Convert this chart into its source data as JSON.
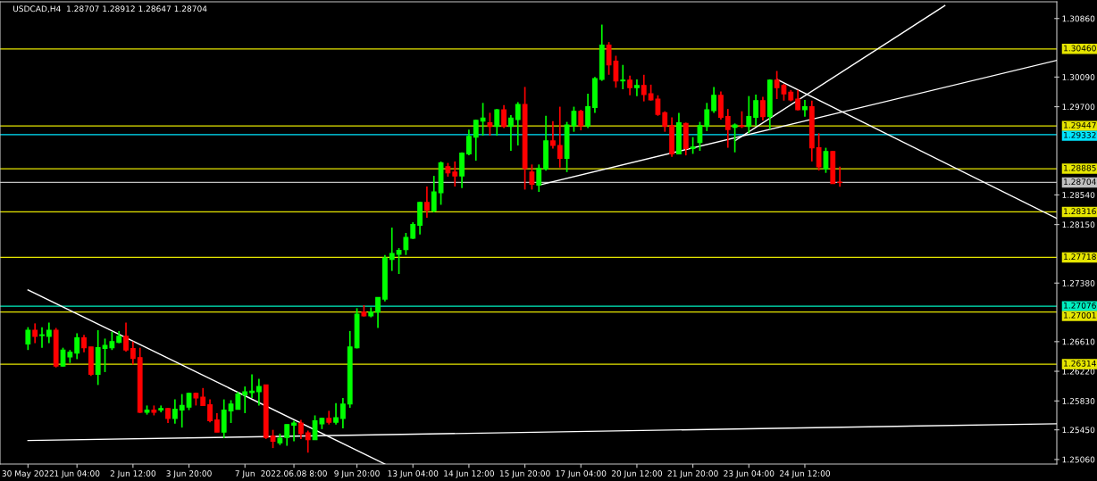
{
  "chart_data": {
    "type": "candlestick",
    "title": "USDCAD,H4  1.28707 1.28912 1.28647 1.28704",
    "categories": [
      "30 May 2022",
      null,
      null,
      null,
      null,
      null,
      null,
      "1 Jun 04:00",
      null,
      null,
      null,
      null,
      null,
      null,
      null,
      "2 Jun 12:00",
      null,
      null,
      null,
      null,
      null,
      null,
      null,
      "3 Jun 20:00",
      null,
      null,
      null,
      null,
      null,
      null,
      null,
      "7 Jun",
      null,
      null,
      null,
      null,
      null,
      null,
      "2022.06.08 8:00",
      null,
      null,
      null,
      null,
      null,
      null,
      null,
      null,
      "9 Jun 20:00",
      null,
      null,
      null,
      null,
      null,
      null,
      null,
      "13 Jun 04:00",
      null,
      null,
      null,
      null,
      null,
      null,
      null,
      "14 Jun 12:00",
      null,
      null,
      null,
      null,
      null,
      null,
      null,
      "15 Jun 20:00",
      null,
      null,
      null,
      null,
      null,
      null,
      null,
      "17 Jun 04:00",
      null,
      null,
      null,
      null,
      null,
      null,
      null,
      "20 Jun 12:00",
      null,
      null,
      null,
      null,
      null,
      null,
      null,
      "21 Jun 20:00",
      null,
      null,
      null,
      null,
      null,
      null,
      null,
      "23 Jun 04:00",
      null,
      null,
      null,
      null,
      null,
      null,
      null,
      "24 Jun 12:00",
      null,
      null,
      null,
      null,
      null,
      null,
      null,
      null,
      null,
      null,
      null,
      null,
      null,
      null,
      null,
      null,
      null,
      null,
      null,
      null,
      null,
      null,
      null,
      null,
      null,
      null,
      null,
      null,
      null,
      null,
      null,
      null,
      null,
      null,
      null,
      null
    ],
    "ohlc": [
      [
        1.2658,
        1.268,
        1.265,
        1.2676
      ],
      [
        1.2676,
        1.2685,
        1.2659,
        1.2668
      ],
      [
        1.2669,
        1.268,
        1.2653,
        1.267
      ],
      [
        1.2668,
        1.2686,
        1.2659,
        1.2676
      ],
      [
        1.2676,
        1.2679,
        1.2627,
        1.2629
      ],
      [
        1.2629,
        1.2653,
        1.2628,
        1.265
      ],
      [
        1.2641,
        1.265,
        1.2633,
        1.2647
      ],
      [
        1.2646,
        1.2672,
        1.2638,
        1.2666
      ],
      [
        1.2666,
        1.267,
        1.2647,
        1.2653
      ],
      [
        1.2654,
        1.2654,
        1.2616,
        1.2618
      ],
      [
        1.2618,
        1.2676,
        1.2604,
        1.2653
      ],
      [
        1.2652,
        1.2665,
        1.2621,
        1.2656
      ],
      [
        1.2653,
        1.2674,
        1.265,
        1.2661
      ],
      [
        1.266,
        1.2675,
        1.2659,
        1.2668
      ],
      [
        1.2668,
        1.2686,
        1.2648,
        1.265
      ],
      [
        1.2652,
        1.2661,
        1.2631,
        1.2639
      ],
      [
        1.264,
        1.2653,
        1.2567,
        1.2568
      ],
      [
        1.2568,
        1.2577,
        1.2565,
        1.2571
      ],
      [
        1.2571,
        1.2577,
        1.2564,
        1.2568
      ],
      [
        1.2571,
        1.2577,
        1.2568,
        1.2573
      ],
      [
        1.2573,
        1.2574,
        1.2554,
        1.256
      ],
      [
        1.256,
        1.2585,
        1.2553,
        1.2572
      ],
      [
        1.2571,
        1.2592,
        1.2548,
        1.2577
      ],
      [
        1.2575,
        1.2594,
        1.2571,
        1.2593
      ],
      [
        1.2593,
        1.2594,
        1.2577,
        1.2587
      ],
      [
        1.2588,
        1.26,
        1.2577,
        1.2577
      ],
      [
        1.2578,
        1.2585,
        1.2555,
        1.2557
      ],
      [
        1.2558,
        1.2567,
        1.2542,
        1.2542
      ],
      [
        1.2542,
        1.2585,
        1.2534,
        1.2571
      ],
      [
        1.257,
        1.2584,
        1.2554,
        1.2579
      ],
      [
        1.2572,
        1.2595,
        1.2572,
        1.2592
      ],
      [
        1.2591,
        1.2602,
        1.2567,
        1.2595
      ],
      [
        1.2594,
        1.2618,
        1.2587,
        1.2596
      ],
      [
        1.2595,
        1.2612,
        1.2577,
        1.2602
      ],
      [
        1.2604,
        1.2604,
        1.2533,
        1.2535
      ],
      [
        1.2537,
        1.2545,
        1.2521,
        1.253
      ],
      [
        1.2528,
        1.254,
        1.2525,
        1.2534
      ],
      [
        1.2535,
        1.2552,
        1.2524,
        1.2552
      ],
      [
        1.2551,
        1.2557,
        1.253,
        1.2554
      ],
      [
        1.2554,
        1.2558,
        1.2533,
        1.254
      ],
      [
        1.2541,
        1.2544,
        1.2515,
        1.2532
      ],
      [
        1.2532,
        1.2564,
        1.2532,
        1.2557
      ],
      [
        1.2553,
        1.2561,
        1.2546,
        1.256
      ],
      [
        1.256,
        1.257,
        1.2552,
        1.2555
      ],
      [
        1.2555,
        1.258,
        1.2552,
        1.2561
      ],
      [
        1.256,
        1.2587,
        1.2547,
        1.2579
      ],
      [
        1.2579,
        1.2675,
        1.2574,
        1.2654
      ],
      [
        1.2653,
        1.2705,
        1.2652,
        1.2697
      ],
      [
        1.27,
        1.2709,
        1.2694,
        1.2695
      ],
      [
        1.2695,
        1.2706,
        1.2693,
        1.27
      ],
      [
        1.27,
        1.2719,
        1.2679,
        1.2719
      ],
      [
        1.2717,
        1.2775,
        1.2714,
        1.2771
      ],
      [
        1.2769,
        1.2811,
        1.2754,
        1.2777
      ],
      [
        1.2776,
        1.2784,
        1.275,
        1.2781
      ],
      [
        1.2782,
        1.2804,
        1.2775,
        1.2798
      ],
      [
        1.2797,
        1.2818,
        1.2796,
        1.2815
      ],
      [
        1.2814,
        1.2845,
        1.2802,
        1.2844
      ],
      [
        1.2844,
        1.2865,
        1.2824,
        1.2834
      ],
      [
        1.2833,
        1.2879,
        1.2831,
        1.2858
      ],
      [
        1.2857,
        1.2898,
        1.2841,
        1.2896
      ],
      [
        1.2891,
        1.2896,
        1.2878,
        1.2883
      ],
      [
        1.2884,
        1.2898,
        1.2865,
        1.2879
      ],
      [
        1.2879,
        1.291,
        1.2863,
        1.2909
      ],
      [
        1.2908,
        1.294,
        1.2906,
        1.2931
      ],
      [
        1.293,
        1.2953,
        1.2899,
        1.2952
      ],
      [
        1.2951,
        1.2975,
        1.2932,
        1.2955
      ],
      [
        1.2949,
        1.2962,
        1.2932,
        1.2944
      ],
      [
        1.2944,
        1.2967,
        1.2932,
        1.2966
      ],
      [
        1.2966,
        1.2972,
        1.2942,
        1.2944
      ],
      [
        1.2944,
        1.2959,
        1.2912,
        1.2955
      ],
      [
        1.2953,
        1.2976,
        1.2919,
        1.2973
      ],
      [
        1.2973,
        1.2996,
        1.2861,
        1.2889
      ],
      [
        1.2884,
        1.2894,
        1.2861,
        1.2868
      ],
      [
        1.2867,
        1.2894,
        1.2858,
        1.2889
      ],
      [
        1.2888,
        1.2958,
        1.2886,
        1.2925
      ],
      [
        1.2925,
        1.2951,
        1.2915,
        1.2919
      ],
      [
        1.2919,
        1.297,
        1.289,
        1.2902
      ],
      [
        1.2902,
        1.295,
        1.2884,
        1.2946
      ],
      [
        1.2945,
        1.297,
        1.2937,
        1.2964
      ],
      [
        1.2964,
        1.2966,
        1.2939,
        1.2945
      ],
      [
        1.2945,
        1.2987,
        1.2942,
        1.297
      ],
      [
        1.2969,
        1.3009,
        1.2962,
        1.3007
      ],
      [
        1.3006,
        1.3078,
        1.3004,
        1.3051
      ],
      [
        1.3051,
        1.3055,
        1.3012,
        1.3025
      ],
      [
        1.303,
        1.3037,
        1.2995,
        1.3004
      ],
      [
        1.3004,
        1.3025,
        1.2993,
        1.3005
      ],
      [
        1.3005,
        1.3011,
        1.2985,
        1.2995
      ],
      [
        1.2995,
        1.3006,
        1.2984,
        1.2998
      ],
      [
        1.2998,
        1.3012,
        1.2977,
        1.2986
      ],
      [
        1.2987,
        1.2999,
        1.2978,
        1.2979
      ],
      [
        1.298,
        1.2985,
        1.2958,
        1.296
      ],
      [
        1.2962,
        1.2964,
        1.2937,
        1.2944
      ],
      [
        1.2945,
        1.2956,
        1.2904,
        1.2908
      ],
      [
        1.2908,
        1.2962,
        1.2908,
        1.2949
      ],
      [
        1.2948,
        1.2949,
        1.2906,
        1.2915
      ],
      [
        1.2915,
        1.293,
        1.2908,
        1.2917
      ],
      [
        1.2923,
        1.295,
        1.2912,
        1.2945
      ],
      [
        1.2944,
        1.2975,
        1.2938,
        1.2966
      ],
      [
        1.2965,
        1.2996,
        1.2962,
        1.2985
      ],
      [
        1.2985,
        1.299,
        1.2953,
        1.2956
      ],
      [
        1.2957,
        1.2967,
        1.2916,
        1.294
      ],
      [
        1.2943,
        1.2948,
        1.291,
        1.2946
      ],
      [
        1.2945,
        1.2964,
        1.2942,
        1.2944
      ],
      [
        1.2944,
        1.2984,
        1.2935,
        1.2957
      ],
      [
        1.2956,
        1.2986,
        1.2945,
        1.2978
      ],
      [
        1.2978,
        1.2983,
        1.2952,
        1.2957
      ],
      [
        1.2957,
        1.3006,
        1.294,
        1.3005
      ],
      [
        1.3005,
        1.3017,
        1.298,
        1.2995
      ],
      [
        1.2998,
        1.3,
        1.2978,
        1.2987
      ],
      [
        1.2989,
        1.2992,
        1.2977,
        1.2979
      ],
      [
        1.298,
        1.2992,
        1.2965,
        1.2966
      ],
      [
        1.2966,
        1.2979,
        1.2957,
        1.297
      ],
      [
        1.297,
        1.2978,
        1.2898,
        1.2916
      ],
      [
        1.2916,
        1.2935,
        1.2886,
        1.2891
      ],
      [
        1.2888,
        1.2916,
        1.2883,
        1.2911
      ],
      [
        1.2911,
        1.2912,
        1.2869,
        1.2869
      ],
      [
        1.28707,
        1.28912,
        1.28647,
        1.28704
      ],
      null,
      null,
      null,
      null,
      null,
      null,
      null,
      null,
      null,
      null,
      null,
      null,
      null,
      null,
      null,
      null,
      null,
      null,
      null,
      null,
      null,
      null,
      null,
      null,
      null,
      null,
      null,
      null,
      null,
      null,
      null
    ],
    "colors": [
      "#00ff00",
      "#ff0000",
      "#00ff00",
      "#00ff00",
      "#ff0000",
      "#00ff00",
      "#00ff00",
      "#00ff00",
      "#ff0000",
      "#ff0000",
      "#00ff00",
      "#00ff00",
      "#00ff00",
      "#00ff00",
      "#ff0000",
      "#ff0000",
      "#ff0000",
      "#00ff00",
      "#ff0000",
      "#00ff00",
      "#ff0000",
      "#00ff00",
      "#00ff00",
      "#00ff00",
      "#ff0000",
      "#ff0000",
      "#ff0000",
      "#ff0000",
      "#00ff00",
      "#00ff00",
      "#00ff00",
      "#00ff00",
      "#00ff00",
      "#00ff00",
      "#ff0000",
      "#ff0000",
      "#00ff00",
      "#00ff00",
      "#00ff00",
      "#ff0000",
      "#ff0000",
      "#00ff00",
      "#00ff00",
      "#ff0000",
      "#00ff00",
      "#00ff00",
      "#00ff00",
      "#00ff00",
      "#ff0000",
      "#00ff00",
      "#00ff00",
      "#00ff00",
      "#00ff00",
      "#00ff00",
      "#00ff00",
      "#00ff00",
      "#00ff00",
      "#ff0000",
      "#00ff00",
      "#00ff00",
      "#ff0000",
      "#ff0000",
      "#00ff00",
      "#00ff00",
      "#00ff00",
      "#00ff00",
      "#ff0000",
      "#00ff00",
      "#ff0000",
      "#00ff00",
      "#00ff00",
      "#ff0000",
      "#ff0000",
      "#00ff00",
      "#00ff00",
      "#ff0000",
      "#ff0000",
      "#00ff00",
      "#00ff00",
      "#ff0000",
      "#00ff00",
      "#00ff00",
      "#00ff00",
      "#ff0000",
      "#ff0000",
      "#00ff00",
      "#ff0000",
      "#00ff00",
      "#ff0000",
      "#ff0000",
      "#ff0000",
      "#ff0000",
      "#ff0000",
      "#00ff00",
      "#ff0000",
      "#00ff00",
      "#00ff00",
      "#00ff00",
      "#00ff00",
      "#ff0000",
      "#ff0000",
      "#00ff00",
      "#ff0000",
      "#00ff00",
      "#00ff00",
      "#ff0000",
      "#00ff00",
      "#ff0000",
      "#ff0000",
      "#ff0000",
      "#ff0000",
      "#00ff00",
      "#ff0000",
      "#ff0000",
      "#00ff00",
      "#ff0000",
      "#ff0000",
      null,
      null,
      null,
      null,
      null,
      null,
      null,
      null,
      null,
      null,
      null,
      null,
      null,
      null,
      null,
      null,
      null,
      null,
      null,
      null,
      null,
      null,
      null,
      null,
      null,
      null,
      null,
      null,
      null,
      null,
      null
    ],
    "series": [
      {
        "type": "line",
        "color": "#ffffff",
        "values": [
          1.2729,
          null,
          null,
          null,
          null,
          null,
          null,
          null,
          null,
          null,
          null,
          null,
          null,
          null,
          null,
          null,
          null,
          null,
          null,
          null,
          null,
          null,
          null,
          null,
          null,
          null,
          null,
          null,
          null,
          null,
          null,
          null,
          null,
          null,
          null,
          null,
          null,
          null,
          null,
          null,
          null,
          null,
          null,
          null,
          null,
          null,
          null,
          null,
          null,
          null,
          null,
          1.25,
          null,
          null,
          null,
          null,
          null,
          null,
          null,
          null,
          null,
          null,
          null,
          null,
          null,
          null,
          null,
          null,
          null,
          null,
          null,
          null,
          null,
          null,
          null,
          null,
          null,
          null,
          null,
          null,
          null,
          null,
          null,
          null,
          null,
          null,
          null,
          null,
          null,
          null,
          null,
          null,
          null,
          null,
          null,
          null,
          null,
          null,
          null,
          null,
          null,
          null,
          null,
          null,
          null,
          null,
          null,
          null,
          null,
          null,
          null,
          null,
          null,
          null,
          null,
          null,
          null,
          null,
          null,
          null,
          null,
          null,
          null,
          null,
          null,
          null,
          null,
          null,
          null,
          null,
          null,
          null,
          null,
          null,
          null,
          null,
          null,
          null,
          null,
          null,
          null,
          null,
          null,
          null,
          null,
          null,
          null,
          null
        ]
      },
      {
        "type": "line",
        "color": "#ffffff",
        "values": [
          1.2531,
          null,
          null,
          null,
          null,
          null,
          null,
          null,
          null,
          null,
          null,
          null,
          null,
          null,
          null,
          null,
          null,
          null,
          null,
          null,
          null,
          null,
          null,
          null,
          null,
          null,
          null,
          null,
          null,
          null,
          null,
          null,
          null,
          null,
          null,
          null,
          null,
          null,
          null,
          null,
          null,
          null,
          null,
          null,
          null,
          null,
          null,
          null,
          null,
          null,
          null,
          null,
          null,
          null,
          null,
          null,
          null,
          null,
          null,
          null,
          null,
          null,
          null,
          null,
          null,
          null,
          null,
          null,
          null,
          null,
          null,
          null,
          null,
          null,
          null,
          null,
          null,
          null,
          null,
          null,
          null,
          null,
          null,
          null,
          null,
          null,
          null,
          null,
          null,
          null,
          null,
          null,
          null,
          null,
          null,
          null,
          null,
          null,
          null,
          null,
          null,
          null,
          null,
          null,
          null,
          null,
          null,
          null,
          null,
          null,
          null,
          null,
          null,
          null,
          null,
          null,
          null,
          null,
          null,
          null,
          null,
          null,
          null,
          null,
          null,
          null,
          null,
          null,
          null,
          null,
          null,
          null,
          null,
          null,
          null,
          null,
          null,
          null,
          null,
          null,
          null,
          null,
          null,
          null,
          null,
          null,
          null,
          1.2553
        ]
      },
      {
        "type": "line",
        "color": "#ffffff",
        "values": [
          null,
          null,
          null,
          null,
          null,
          null,
          null,
          null,
          null,
          null,
          null,
          null,
          null,
          null,
          null,
          null,
          null,
          null,
          null,
          null,
          null,
          null,
          null,
          null,
          null,
          null,
          null,
          null,
          null,
          null,
          null,
          null,
          null,
          null,
          null,
          null,
          null,
          null,
          null,
          null,
          null,
          null,
          null,
          null,
          null,
          null,
          null,
          null,
          null,
          null,
          null,
          null,
          null,
          null,
          null,
          null,
          null,
          null,
          null,
          null,
          null,
          null,
          null,
          null,
          null,
          null,
          null,
          null,
          null,
          null,
          null,
          null,
          null,
          1.2867,
          null,
          null,
          null,
          null,
          null,
          null,
          null,
          null,
          null,
          null,
          null,
          null,
          null,
          null,
          null,
          null,
          null,
          null,
          null,
          null,
          null,
          null,
          null,
          null,
          null,
          null,
          null,
          null,
          null,
          null,
          null,
          null,
          null,
          null,
          null,
          null,
          null,
          null,
          null,
          null,
          null,
          null,
          null,
          null,
          null,
          null,
          null,
          null,
          null,
          null,
          null,
          null,
          null,
          null,
          null,
          null,
          null,
          null,
          null,
          null,
          null,
          null,
          null,
          null,
          null,
          null,
          null,
          null,
          null,
          null,
          null,
          null,
          null,
          1.3031
        ]
      },
      {
        "type": "line",
        "color": "#ffffff",
        "values": [
          null,
          null,
          null,
          null,
          null,
          null,
          null,
          null,
          null,
          null,
          null,
          null,
          null,
          null,
          null,
          null,
          null,
          null,
          null,
          null,
          null,
          null,
          null,
          null,
          null,
          null,
          null,
          null,
          null,
          null,
          null,
          null,
          null,
          null,
          null,
          null,
          null,
          null,
          null,
          null,
          null,
          null,
          null,
          null,
          null,
          null,
          null,
          null,
          null,
          null,
          null,
          null,
          null,
          null,
          null,
          null,
          null,
          null,
          null,
          null,
          null,
          null,
          null,
          null,
          null,
          null,
          null,
          null,
          null,
          null,
          null,
          null,
          null,
          null,
          null,
          null,
          null,
          null,
          null,
          null,
          null,
          null,
          null,
          null,
          null,
          null,
          null,
          null,
          null,
          null,
          null,
          null,
          null,
          null,
          null,
          null,
          null,
          null,
          null,
          null,
          null,
          1.2925,
          null,
          null,
          null,
          null,
          null,
          null,
          null,
          null,
          null,
          null,
          null,
          null,
          null,
          null,
          null,
          null,
          null,
          null,
          null,
          null,
          null,
          null,
          null,
          null,
          null,
          null,
          null,
          null,
          null,
          1.3103,
          null,
          null,
          null,
          null,
          null,
          null,
          null,
          null,
          null,
          null,
          null,
          null,
          null,
          null,
          null,
          null
        ]
      },
      {
        "type": "line",
        "color": "#ffffff",
        "values": [
          null,
          null,
          null,
          null,
          null,
          null,
          null,
          null,
          null,
          null,
          null,
          null,
          null,
          null,
          null,
          null,
          null,
          null,
          null,
          null,
          null,
          null,
          null,
          null,
          null,
          null,
          null,
          null,
          null,
          null,
          null,
          null,
          null,
          null,
          null,
          null,
          null,
          null,
          null,
          null,
          null,
          null,
          null,
          null,
          null,
          null,
          null,
          null,
          null,
          null,
          null,
          null,
          null,
          null,
          null,
          null,
          null,
          null,
          null,
          null,
          null,
          null,
          null,
          null,
          null,
          null,
          null,
          null,
          null,
          null,
          null,
          null,
          null,
          null,
          null,
          null,
          null,
          null,
          null,
          null,
          null,
          null,
          null,
          null,
          null,
          null,
          null,
          null,
          null,
          null,
          null,
          null,
          null,
          null,
          null,
          null,
          null,
          null,
          null,
          null,
          null,
          null,
          null,
          null,
          null,
          null,
          null,
          1.3006,
          null,
          null,
          null,
          null,
          null,
          null,
          null,
          null,
          null,
          null,
          null,
          null,
          null,
          null,
          null,
          null,
          null,
          null,
          null,
          null,
          null,
          null,
          null,
          null,
          null,
          null,
          null,
          null,
          null,
          null,
          null,
          null,
          null,
          null,
          null,
          null,
          null,
          null,
          null,
          1.2823
        ]
      }
    ],
    "ylim": [
      1.25,
      1.3108
    ],
    "yticks": [
      {
        "value": 1.3086,
        "label": "1.30860"
      },
      {
        "value": 1.3009,
        "label": "1.30090"
      },
      {
        "value": 1.297,
        "label": "1.29700"
      },
      {
        "value": 1.2854,
        "label": "1.28540"
      },
      {
        "value": 1.2815,
        "label": "1.28150"
      },
      {
        "value": 1.2738,
        "label": "1.27380"
      },
      {
        "value": 1.2661,
        "label": "1.26610"
      },
      {
        "value": 1.2622,
        "label": "1.26220"
      },
      {
        "value": 1.2583,
        "label": "1.25830"
      },
      {
        "value": 1.2545,
        "label": "1.25450"
      },
      {
        "value": 1.2506,
        "label": "1.25060"
      }
    ],
    "ref_lines": [
      {
        "axis": "y",
        "value": 1.3046,
        "label": "1.30460",
        "color": "#e6e600"
      },
      {
        "axis": "y",
        "value": 1.29447,
        "label": "1.29447",
        "color": "#e6e600"
      },
      {
        "axis": "y",
        "value": 1.29332,
        "label": "1.29332",
        "color": "#00e5ff"
      },
      {
        "axis": "y",
        "value": 1.28885,
        "label": "1.28885",
        "color": "#e6e600"
      },
      {
        "axis": "y",
        "value": 1.28704,
        "label": "1.28704",
        "color": "#c0c0c0"
      },
      {
        "axis": "y",
        "value": 1.28316,
        "label": "1.28316",
        "color": "#e6e600"
      },
      {
        "axis": "y",
        "value": 1.27718,
        "label": "1.27718",
        "color": "#e6e600"
      },
      {
        "axis": "y",
        "value": 1.27076,
        "label": "1.27076",
        "color": "#00f0c0"
      },
      {
        "axis": "y",
        "value": 1.27001,
        "label": "1.27001",
        "color": "#e6e600"
      },
      {
        "axis": "y",
        "value": 1.26314,
        "label": "1.26314",
        "color": "#e6e600"
      }
    ],
    "grid": false
  }
}
